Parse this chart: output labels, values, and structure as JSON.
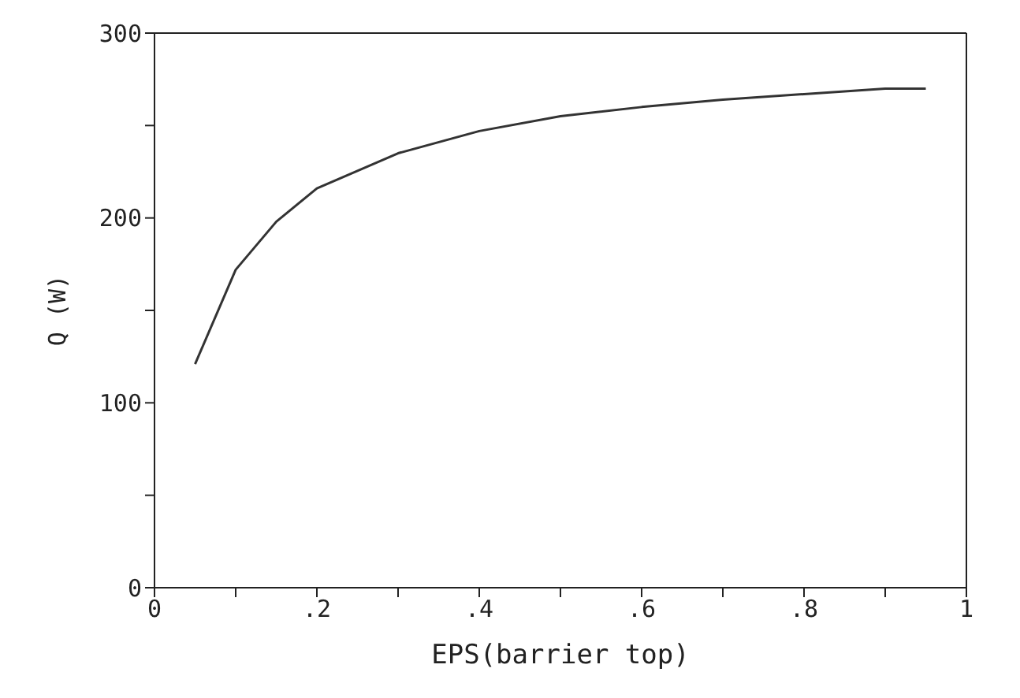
{
  "chart_data": {
    "type": "line",
    "xlabel": "EPS(barrier top)",
    "ylabel": "Q (W)",
    "x": [
      0.05,
      0.1,
      0.15,
      0.2,
      0.3,
      0.4,
      0.5,
      0.6,
      0.7,
      0.8,
      0.9,
      0.95
    ],
    "series": [
      {
        "color": "#333333",
        "values": [
          121,
          172,
          198,
          216,
          235,
          247,
          255,
          260,
          264,
          267,
          270,
          270
        ]
      }
    ],
    "xlim": [
      0,
      1
    ],
    "ylim": [
      0,
      300
    ],
    "xticks": [
      {
        "value": 0,
        "label": "0"
      },
      {
        "value": 0.1,
        "label": null
      },
      {
        "value": 0.2,
        "label": ".2"
      },
      {
        "value": 0.3,
        "label": null
      },
      {
        "value": 0.4,
        "label": ".4"
      },
      {
        "value": 0.5,
        "label": null
      },
      {
        "value": 0.6,
        "label": ".6"
      },
      {
        "value": 0.7,
        "label": null
      },
      {
        "value": 0.8,
        "label": ".8"
      },
      {
        "value": 0.9,
        "label": null
      },
      {
        "value": 1,
        "label": "1"
      }
    ],
    "yticks": [
      0,
      {
        "value": 50,
        "label": null
      },
      100,
      {
        "value": 150,
        "label": null
      },
      200,
      {
        "value": 250,
        "label": null
      },
      300
    ],
    "grid": false,
    "legend": false,
    "marker": "none",
    "line_style": "solid"
  }
}
